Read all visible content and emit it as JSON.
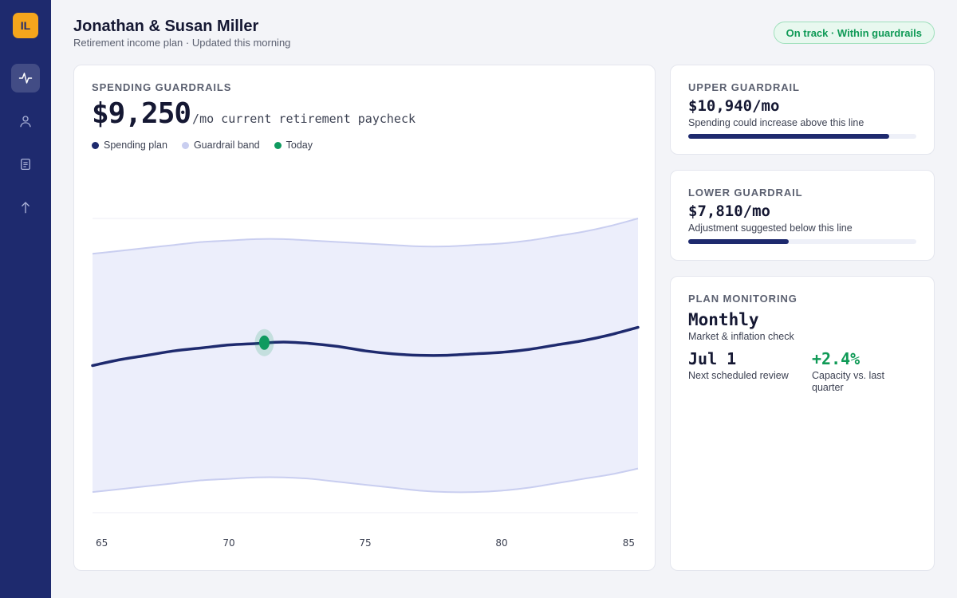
{
  "app": {
    "logo_text": "IL"
  },
  "nav": {
    "items": [
      {
        "icon": "activity-icon",
        "label": "Activity",
        "active": true
      },
      {
        "icon": "user-icon",
        "label": "Client",
        "active": false
      },
      {
        "icon": "document-icon",
        "label": "Documents",
        "active": false
      },
      {
        "icon": "upload-icon",
        "label": "Upload",
        "active": false
      }
    ]
  },
  "header": {
    "title": "Jonathan & Susan Miller",
    "subtitle": "Retirement income plan · Updated this morning",
    "status": "On track · Within guardrails"
  },
  "guardrails": {
    "label": "SPENDING GUARDRAILS",
    "value": "$9,250",
    "suffix": "/mo current retirement paycheck",
    "legend": [
      {
        "label": "Spending plan",
        "color": "#1e2a6e"
      },
      {
        "label": "Guardrail band",
        "color": "#c9cef0"
      },
      {
        "label": "Today",
        "color": "#0f9a5f"
      }
    ]
  },
  "upper": {
    "label": "UPPER GUARDRAIL",
    "value": "$10,940/mo",
    "note": "Spending could increase above this line",
    "progress": 0.88
  },
  "lower": {
    "label": "LOWER GUARDRAIL",
    "value": "$7,810/mo",
    "note": "Adjustment suggested below this line",
    "progress": 0.44
  },
  "monitoring": {
    "label": "PLAN MONITORING",
    "frequency": "Monthly",
    "frequency_note": "Market & inflation check",
    "review_value": "Jul 1",
    "review_label": "Next scheduled review",
    "capacity_value": "+2.4%",
    "capacity_label": "Capacity vs. last quarter"
  },
  "chart_data": {
    "type": "area",
    "x_ticks": [
      65,
      70,
      75,
      80,
      85
    ],
    "xlim": [
      65,
      85
    ],
    "ylim": [
      0,
      1
    ],
    "grid": false,
    "legend_position": "top-left",
    "colors": {
      "plan": "#1e2a6e",
      "band": "#c9cef0",
      "band_fill": "#eceefb",
      "today": "#0f9a5f"
    },
    "series": [
      {
        "name": "Spending plan",
        "x": [
          65,
          66,
          67,
          68,
          69,
          70,
          71,
          72,
          73,
          74,
          75,
          76,
          77,
          78,
          79,
          80,
          81,
          82,
          83,
          84,
          85
        ],
        "values": [
          0.5,
          0.52,
          0.535,
          0.55,
          0.56,
          0.57,
          0.575,
          0.58,
          0.575,
          0.565,
          0.55,
          0.54,
          0.535,
          0.535,
          0.54,
          0.545,
          0.555,
          0.57,
          0.585,
          0.605,
          0.63
        ]
      },
      {
        "name": "Guardrail band",
        "x": [
          65,
          66,
          67,
          68,
          69,
          70,
          71,
          72,
          73,
          74,
          75,
          76,
          77,
          78,
          79,
          80,
          81,
          82,
          83,
          84,
          85
        ],
        "upper": [
          0.88,
          0.89,
          0.9,
          0.91,
          0.92,
          0.925,
          0.93,
          0.93,
          0.925,
          0.92,
          0.915,
          0.91,
          0.905,
          0.905,
          0.91,
          0.915,
          0.925,
          0.94,
          0.955,
          0.975,
          1.0
        ],
        "lower": [
          0.07,
          0.08,
          0.09,
          0.1,
          0.11,
          0.115,
          0.12,
          0.12,
          0.115,
          0.105,
          0.095,
          0.085,
          0.075,
          0.07,
          0.07,
          0.075,
          0.085,
          0.1,
          0.115,
          0.13,
          0.15
        ]
      }
    ],
    "today": {
      "x": 71.3,
      "y": 0.578
    }
  }
}
